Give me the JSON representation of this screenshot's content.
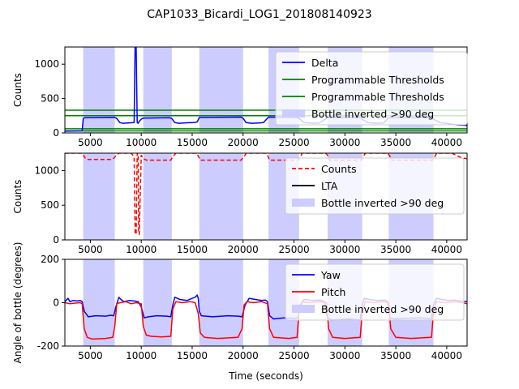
{
  "figure": {
    "title": "CAP1033_Bicardi_LOG1_201808140923",
    "xlabel": "Time (seconds)"
  },
  "colors": {
    "band": "#ccccff",
    "delta": "#0000ff",
    "threshold": "#008000",
    "counts": "#ff0000",
    "lta": "#000000",
    "yaw": "#0000ff",
    "pitch": "#ff0000"
  },
  "chart_data": [
    {
      "type": "line",
      "ylabel": "Counts",
      "xlim": [
        2500,
        42000
      ],
      "ylim": [
        0,
        1250
      ],
      "xticks": [
        5000,
        10000,
        15000,
        20000,
        25000,
        30000,
        35000,
        40000
      ],
      "yticks": [
        0,
        500,
        1000
      ],
      "legend_position": "upper right",
      "bands_label": "Bottle inverted >90 deg",
      "bands": [
        [
          4300,
          7400
        ],
        [
          10200,
          13000
        ],
        [
          15700,
          20000
        ],
        [
          22500,
          25500
        ],
        [
          28300,
          31700
        ],
        [
          34300,
          38700
        ]
      ],
      "hlines": [
        {
          "name": "Programmable Thresholds",
          "y": 330
        },
        {
          "name": "Programmable Thresholds",
          "y": 250
        },
        {
          "name": "",
          "y": 60
        },
        {
          "name": "",
          "y": 30
        }
      ],
      "series": [
        {
          "name": "Delta",
          "color_key": "delta",
          "x": [
            2500,
            4200,
            4300,
            4400,
            7400,
            7600,
            7900,
            8200,
            8700,
            9300,
            9400,
            9500,
            9600,
            9700,
            9800,
            10000,
            10200,
            12800,
            13000,
            13300,
            13700,
            14200,
            14700,
            15200,
            15500,
            15700,
            19800,
            20000,
            20300,
            20800,
            21500,
            22000,
            22500,
            25300,
            25500,
            26000,
            26800,
            27500,
            28300,
            31500,
            31700,
            32200,
            33000,
            33800,
            34300,
            38500,
            38700,
            39300,
            40000,
            40500,
            41200,
            42000
          ],
          "y": [
            25,
            30,
            200,
            220,
            225,
            210,
            150,
            140,
            145,
            150,
            1250,
            1250,
            150,
            140,
            170,
            200,
            215,
            220,
            210,
            150,
            140,
            145,
            148,
            150,
            160,
            225,
            230,
            215,
            150,
            140,
            145,
            150,
            230,
            225,
            210,
            150,
            140,
            145,
            225,
            220,
            200,
            150,
            140,
            145,
            220,
            225,
            200,
            150,
            140,
            125,
            115,
            110
          ]
        }
      ]
    },
    {
      "type": "line",
      "ylabel": "Counts",
      "xlim": [
        2500,
        42000
      ],
      "ylim": [
        0,
        1250
      ],
      "xticks": [
        5000,
        10000,
        15000,
        20000,
        25000,
        30000,
        35000,
        40000
      ],
      "yticks": [
        0,
        500,
        1000
      ],
      "legend_position": "upper right",
      "bands_label": "Bottle inverted >90 deg",
      "bands": [
        [
          4300,
          7400
        ],
        [
          10200,
          13000
        ],
        [
          15700,
          20000
        ],
        [
          22500,
          25500
        ],
        [
          28300,
          31700
        ],
        [
          34300,
          38700
        ]
      ],
      "series": [
        {
          "name": "Counts",
          "color_key": "counts",
          "dashed": true,
          "x": [
            2500,
            3500,
            4200,
            4400,
            4600,
            7200,
            7500,
            7800,
            8300,
            9000,
            9300,
            9400,
            9500,
            9600,
            9650,
            9700,
            9750,
            9800,
            10000,
            10200,
            10500,
            12900,
            13100,
            13400,
            14000,
            15000,
            15400,
            15600,
            15800,
            19800,
            20100,
            20300,
            21500,
            22200,
            22400,
            22600,
            25400,
            25600,
            25800,
            27500,
            28100,
            28300,
            28500,
            31600,
            31800,
            32000,
            33600,
            34200,
            34400,
            34600,
            38600,
            38800,
            39000,
            40500,
            41200,
            41600,
            42000
          ],
          "y": [
            1250,
            1250,
            1250,
            1200,
            1160,
            1160,
            1210,
            1250,
            1250,
            1250,
            1200,
            100,
            80,
            1250,
            1250,
            1250,
            100,
            80,
            1220,
            1170,
            1150,
            1150,
            1200,
            1250,
            1250,
            1250,
            1250,
            1210,
            1150,
            1150,
            1200,
            1250,
            1250,
            1250,
            1220,
            1150,
            1150,
            1190,
            1250,
            1250,
            1250,
            1220,
            1150,
            1150,
            1190,
            1250,
            1250,
            1250,
            1210,
            1150,
            1150,
            1190,
            1250,
            1250,
            1200,
            1180,
            1170
          ]
        },
        {
          "name": "LTA",
          "color_key": "lta",
          "x": [
            2500,
            42000
          ],
          "y": [
            1300,
            1300
          ]
        }
      ]
    },
    {
      "type": "line",
      "ylabel": "Angle of bottle (degrees)",
      "xlim": [
        2500,
        42000
      ],
      "ylim": [
        -200,
        200
      ],
      "xticks": [
        5000,
        10000,
        15000,
        20000,
        25000,
        30000,
        35000,
        40000
      ],
      "yticks": [
        -200,
        0,
        200
      ],
      "legend_position": "upper right",
      "bands_label": "Bottle inverted >90 deg",
      "bands": [
        [
          4300,
          7400
        ],
        [
          10200,
          13000
        ],
        [
          15700,
          20000
        ],
        [
          22500,
          25500
        ],
        [
          28300,
          31700
        ],
        [
          34300,
          38700
        ]
      ],
      "series": [
        {
          "name": "Yaw",
          "color_key": "yaw",
          "x": [
            2500,
            2800,
            3000,
            3300,
            3700,
            4000,
            4200,
            4400,
            4800,
            5500,
            6500,
            7000,
            7300,
            7500,
            7800,
            8000,
            8300,
            8800,
            9300,
            9700,
            10000,
            10300,
            10700,
            11500,
            12500,
            12900,
            13100,
            13300,
            13800,
            14500,
            15000,
            15300,
            15500,
            15600,
            15700,
            15900,
            16300,
            17000,
            18500,
            19500,
            19900,
            20200,
            20600,
            21200,
            21800,
            22200,
            22400,
            22600,
            23000,
            24000,
            25000,
            25400,
            25600,
            26000,
            26800,
            27600,
            28000,
            28300,
            28700,
            29500,
            30500,
            31500,
            31700,
            31900,
            32400,
            33200,
            33900,
            34200,
            34400,
            34900,
            36000,
            37500,
            38500,
            38700,
            39000,
            39500,
            40200,
            40800,
            41300,
            42000
          ],
          "y": [
            5,
            20,
            5,
            10,
            8,
            10,
            5,
            -40,
            -65,
            -60,
            -62,
            -58,
            -60,
            -20,
            25,
            15,
            5,
            10,
            8,
            5,
            -20,
            -70,
            -65,
            -60,
            -62,
            -65,
            -10,
            25,
            15,
            10,
            20,
            25,
            35,
            20,
            -40,
            -60,
            -62,
            -65,
            -60,
            -62,
            -65,
            -10,
            20,
            15,
            10,
            12,
            5,
            -60,
            -75,
            -70,
            -72,
            -70,
            -10,
            15,
            10,
            12,
            5,
            -70,
            -80,
            -78,
            -75,
            -80,
            -10,
            20,
            15,
            10,
            12,
            5,
            -70,
            -75,
            -72,
            -70,
            -75,
            -10,
            20,
            15,
            10,
            12,
            8,
            5
          ]
        },
        {
          "name": "Pitch",
          "color_key": "pitch",
          "x": [
            2500,
            3000,
            3500,
            4000,
            4200,
            4400,
            4700,
            5200,
            6500,
            7200,
            7400,
            7600,
            7900,
            8500,
            9000,
            9500,
            10000,
            10200,
            10500,
            11000,
            12000,
            12900,
            13100,
            13400,
            14000,
            14800,
            15300,
            15600,
            15800,
            16200,
            17500,
            19500,
            19900,
            20100,
            20400,
            21000,
            21800,
            22400,
            22600,
            23000,
            24500,
            25300,
            25500,
            25800,
            26500,
            27500,
            28200,
            28400,
            28800,
            30000,
            31500,
            31700,
            32000,
            32800,
            33800,
            34300,
            34500,
            35000,
            36500,
            38500,
            38700,
            39000,
            39800,
            40800,
            41500,
            42000
          ],
          "y": [
            0,
            -5,
            -2,
            0,
            -5,
            -120,
            -160,
            -168,
            -165,
            -160,
            -110,
            -5,
            0,
            5,
            -5,
            0,
            -5,
            -110,
            -150,
            -155,
            -158,
            -155,
            -30,
            5,
            0,
            5,
            0,
            -50,
            -140,
            -160,
            -165,
            -160,
            -120,
            -10,
            5,
            0,
            5,
            -5,
            -120,
            -160,
            -165,
            -160,
            -40,
            5,
            0,
            5,
            0,
            -120,
            -160,
            -165,
            -160,
            -40,
            5,
            0,
            5,
            0,
            -120,
            -160,
            -165,
            -160,
            -40,
            5,
            0,
            5,
            0,
            -5
          ]
        }
      ]
    }
  ]
}
